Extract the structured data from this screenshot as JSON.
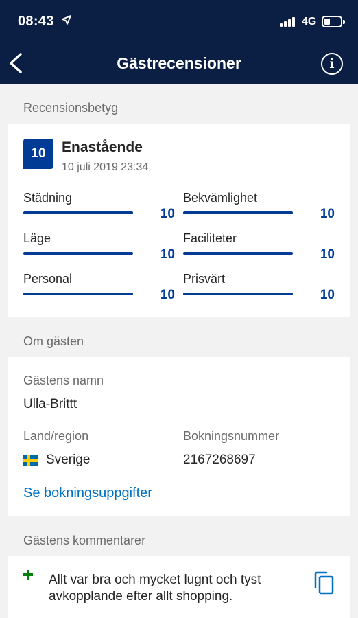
{
  "status_bar": {
    "time": "08:43",
    "network": "4G",
    "icons": [
      "location-arrow-icon",
      "signal-icon",
      "battery-icon"
    ]
  },
  "nav": {
    "title": "Gästrecensioner",
    "back_icon": "chevron-left-icon",
    "info_icon": "info-icon",
    "info_glyph": "i"
  },
  "rating_section": {
    "header": "Recensionsbetyg",
    "score": "10",
    "score_label": "Enastående",
    "date": "10 juli 2019 23:34",
    "categories": [
      {
        "label": "Städning",
        "value": "10",
        "fill": 1.0
      },
      {
        "label": "Bekvämlighet",
        "value": "10",
        "fill": 1.0
      },
      {
        "label": "Läge",
        "value": "10",
        "fill": 1.0
      },
      {
        "label": "Faciliteter",
        "value": "10",
        "fill": 1.0
      },
      {
        "label": "Personal",
        "value": "10",
        "fill": 1.0
      },
      {
        "label": "Prisvärt",
        "value": "10",
        "fill": 1.0
      }
    ]
  },
  "guest_section": {
    "header": "Om gästen",
    "name_label": "Gästens namn",
    "name": "Ulla-Brittt",
    "country_label": "Land/region",
    "country": "Sverige",
    "booking_label": "Bokningsnummer",
    "booking_number": "2167268697",
    "details_link": "Se bokningsuppgifter"
  },
  "comments_section": {
    "header": "Gästens kommentarer",
    "positive_comment": "Allt var bra och mycket lugnt och tyst avkopplande efter allt shopping."
  },
  "colors": {
    "nav_background": "#0b1f44",
    "brand_blue": "#003b95",
    "link_blue": "#0071c2",
    "positive_green": "#008009"
  }
}
